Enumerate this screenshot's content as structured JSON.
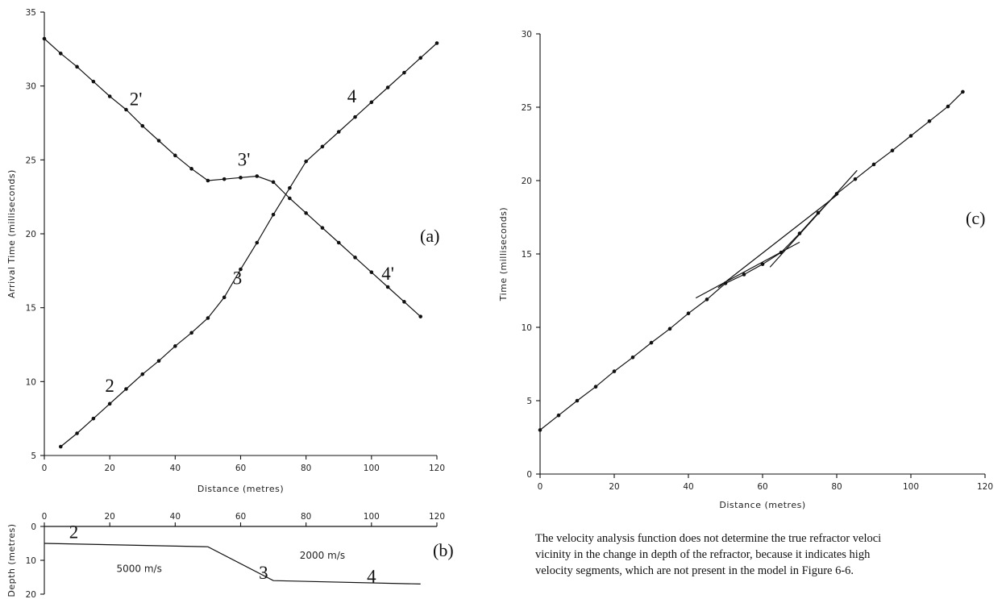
{
  "chart_data": [
    {
      "id": "a",
      "type": "line",
      "panel_label": "(a)",
      "xlabel": "Distance (metres)",
      "ylabel": "Arrival Time (milliseconds)",
      "xlim": [
        0,
        120
      ],
      "ylim": [
        5,
        35
      ],
      "xticks": [
        0,
        20,
        40,
        60,
        80,
        100,
        120
      ],
      "yticks": [
        5,
        10,
        15,
        20,
        25,
        30,
        35
      ],
      "series": [
        {
          "x": [
            5,
            10,
            15,
            20,
            25,
            30,
            35,
            40,
            45,
            50,
            55,
            60,
            65,
            70,
            75,
            80,
            85,
            90,
            95,
            100,
            105,
            110,
            115,
            120
          ],
          "y": [
            5.6,
            6.5,
            7.5,
            8.5,
            9.5,
            10.5,
            11.4,
            12.4,
            13.3,
            14.3,
            15.7,
            17.6,
            19.4,
            21.3,
            23.1,
            24.9,
            25.9,
            26.9,
            27.9,
            28.9,
            29.9,
            30.9,
            31.9,
            32.9
          ]
        },
        {
          "x": [
            0,
            5,
            10,
            15,
            20,
            25,
            30,
            35,
            40,
            45,
            50,
            55,
            60,
            65,
            70,
            75,
            80,
            85,
            90,
            95,
            100,
            105,
            110,
            115
          ],
          "y": [
            33.2,
            32.2,
            31.3,
            30.3,
            29.3,
            28.4,
            27.3,
            26.3,
            25.3,
            24.4,
            23.6,
            23.7,
            23.8,
            23.9,
            23.5,
            22.4,
            21.4,
            20.4,
            19.4,
            18.4,
            17.4,
            16.4,
            15.4,
            14.4
          ]
        }
      ],
      "annotations": [
        {
          "text": "2",
          "x": 20,
          "y": 9.3
        },
        {
          "text": "2'",
          "x": 28,
          "y": 28.7
        },
        {
          "text": "3",
          "x": 59,
          "y": 16.6
        },
        {
          "text": "3'",
          "x": 61,
          "y": 24.6
        },
        {
          "text": "4",
          "x": 94,
          "y": 28.9
        },
        {
          "text": "4'",
          "x": 105,
          "y": 16.9
        }
      ]
    },
    {
      "id": "b",
      "type": "line",
      "panel_label": "(b)",
      "ylabel": "Depth (metres)",
      "xlim": [
        0,
        120
      ],
      "ylim": [
        0,
        20
      ],
      "xticks": [
        0,
        20,
        40,
        60,
        80,
        100,
        120
      ],
      "yticks": [
        0,
        10,
        20
      ],
      "series": [
        {
          "x": [
            0,
            50,
            70,
            115
          ],
          "y": [
            5,
            6,
            16,
            17
          ]
        }
      ],
      "annotations": [
        {
          "text": "2",
          "x": 9,
          "y": 3.5
        },
        {
          "text": "3",
          "x": 67,
          "y": 15.5
        },
        {
          "text": "4",
          "x": 100,
          "y": 16.5
        },
        {
          "text": "5000 m/s",
          "x": 29,
          "y": 13.5
        },
        {
          "text": "2000 m/s",
          "x": 85,
          "y": 9.5
        }
      ]
    },
    {
      "id": "c",
      "type": "line",
      "panel_label": "(c)",
      "xlabel": "Distance (metres)",
      "ylabel": "Time (milliseconds)",
      "xlim": [
        0,
        120
      ],
      "ylim": [
        0,
        30
      ],
      "xticks": [
        0,
        20,
        40,
        60,
        80,
        100,
        120
      ],
      "yticks": [
        0,
        5,
        10,
        15,
        20,
        25,
        30
      ],
      "series": [
        {
          "x": [
            0,
            5,
            10,
            15,
            20,
            25,
            30,
            35,
            40,
            45,
            50,
            55,
            60,
            65,
            70,
            75,
            80,
            85,
            90,
            95,
            100,
            105,
            110,
            114
          ],
          "y": [
            3.0,
            4.0,
            5.0,
            5.95,
            7.0,
            7.95,
            8.95,
            9.9,
            10.95,
            11.9,
            13.0,
            13.6,
            14.3,
            15.1,
            16.4,
            17.8,
            19.1,
            20.1,
            21.1,
            22.05,
            23.05,
            24.05,
            25.05,
            26.05
          ]
        },
        {
          "x": [
            42,
            70
          ],
          "y": [
            12.0,
            15.8
          ]
        },
        {
          "x": [
            62,
            85.5
          ],
          "y": [
            14.1,
            20.7
          ]
        },
        {
          "x": [
            48,
            80
          ],
          "y": [
            12.7,
            19.0
          ]
        }
      ]
    }
  ],
  "caption": {
    "line1": "The velocity analysis function does not determine the true refractor veloci",
    "line2": "vicinity in the change in depth of the refractor, because it indicates high",
    "line3": "velocity segments, which are not present in the model in Figure 6-6."
  }
}
